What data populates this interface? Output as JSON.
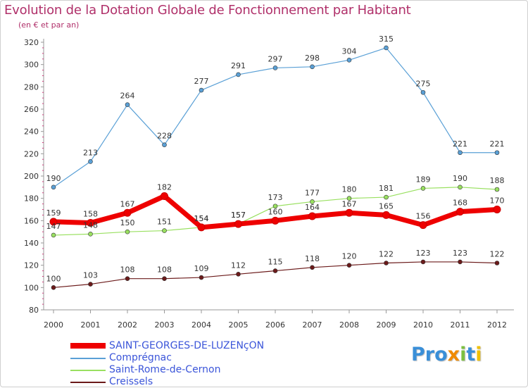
{
  "chart_data": {
    "type": "line",
    "title": "Evolution de la Dotation Globale de Fonctionnement par Habitant",
    "subtitle": "(en € et par an)",
    "xlabel": "",
    "ylabel": "",
    "x": [
      "2000",
      "2001",
      "2002",
      "2003",
      "2004",
      "2005",
      "2006",
      "2007",
      "2008",
      "2009",
      "2010",
      "2011",
      "2012"
    ],
    "ylim": [
      80,
      320
    ],
    "yticks": [
      80,
      100,
      120,
      140,
      160,
      180,
      200,
      220,
      240,
      260,
      280,
      300,
      320
    ],
    "grid": false,
    "series": [
      {
        "name": "SAINT-GEORGES-DE-LUZENçON",
        "color": "#ee0000",
        "values": [
          159,
          158,
          167,
          182,
          154,
          157,
          160,
          164,
          167,
          165,
          156,
          168,
          170
        ]
      },
      {
        "name": "Comprégnac",
        "color": "#5aa0d6",
        "values": [
          190,
          213,
          264,
          228,
          277,
          291,
          297,
          298,
          304,
          315,
          275,
          221,
          221
        ]
      },
      {
        "name": "Saint-Rome-de-Cernon",
        "color": "#99e060",
        "values": [
          147,
          148,
          150,
          151,
          154,
          157,
          173,
          177,
          180,
          181,
          189,
          190,
          188
        ]
      },
      {
        "name": "Creissels",
        "color": "#6b1a1a",
        "values": [
          100,
          103,
          108,
          108,
          109,
          112,
          115,
          118,
          120,
          122,
          123,
          123,
          122
        ]
      }
    ]
  },
  "logo": {
    "p1": "Pro",
    "x": "x",
    "i1": "i",
    "t": "t",
    "i2": "i"
  }
}
